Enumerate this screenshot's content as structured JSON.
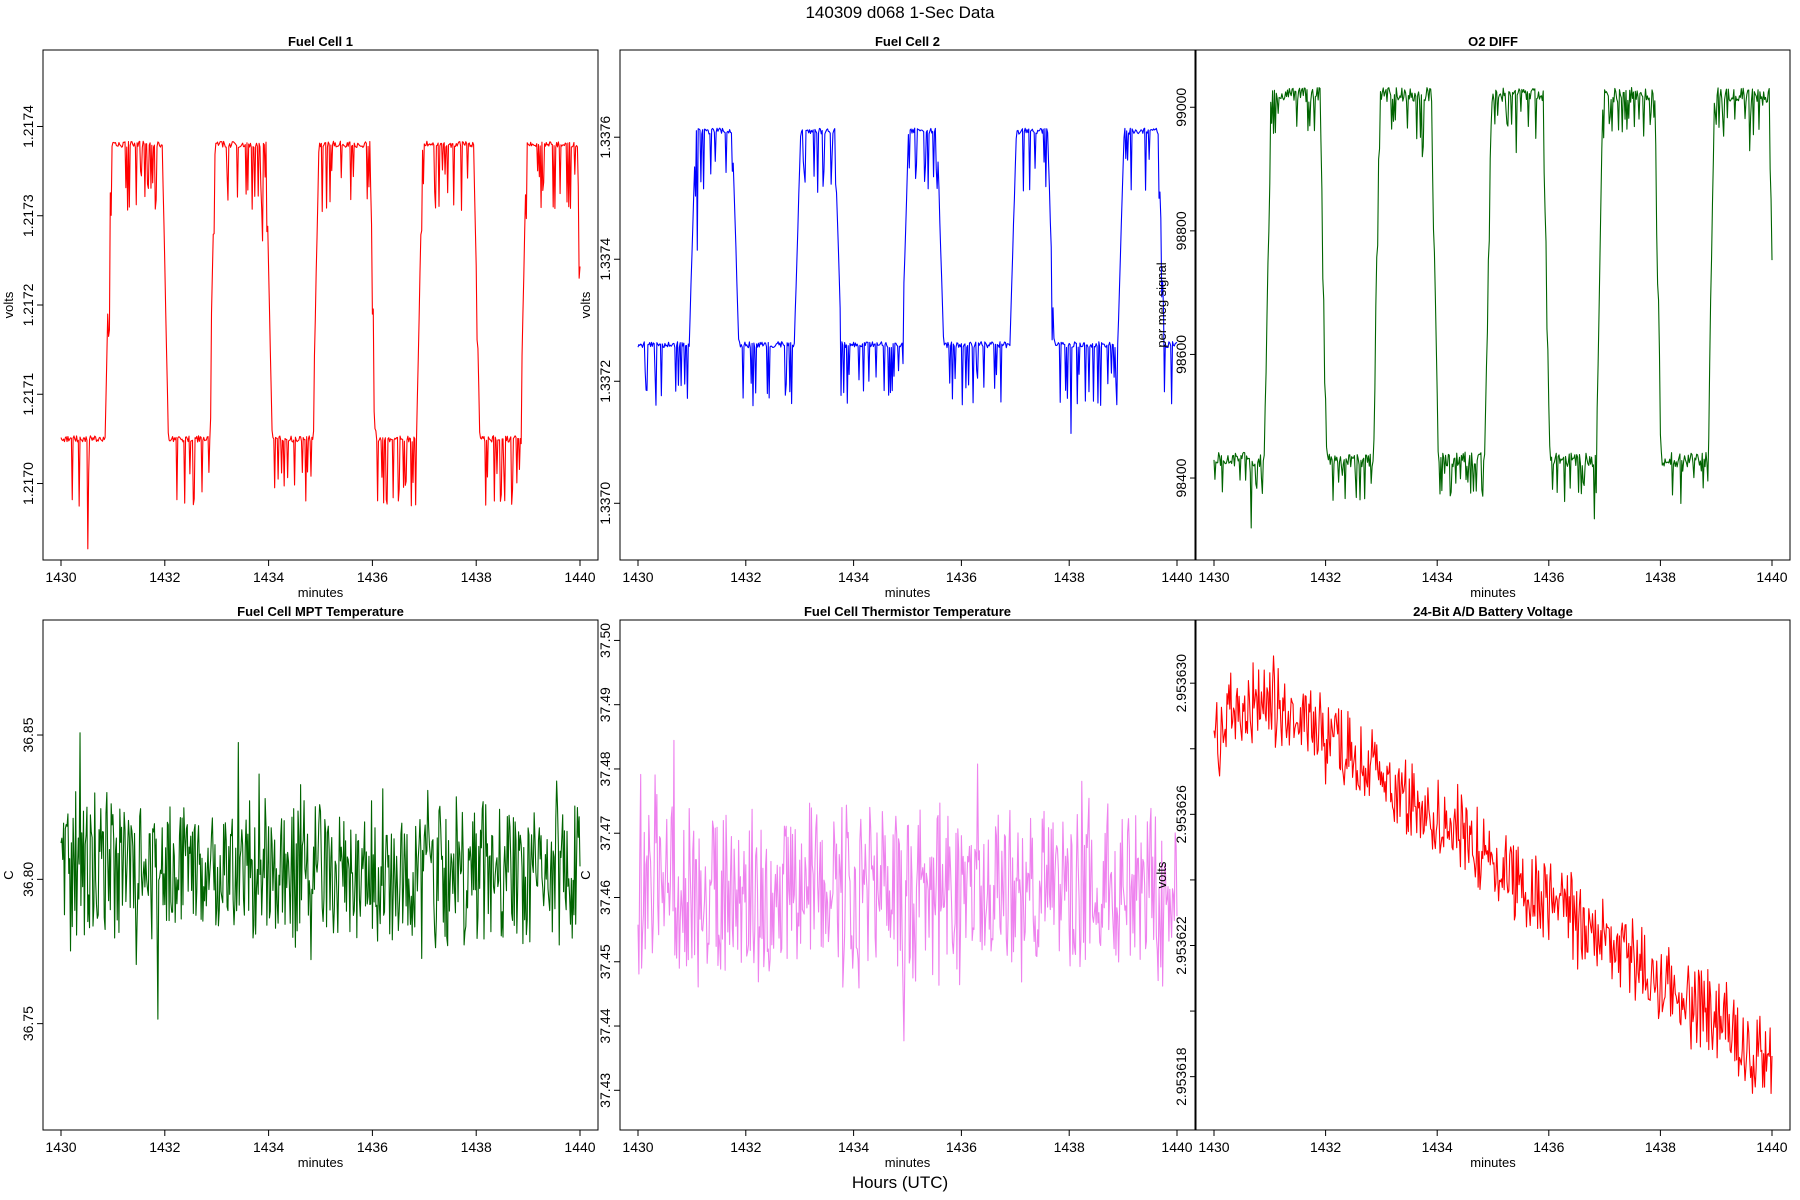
{
  "figure": {
    "title": "140309   d068   1-Sec Data",
    "xlabel": "Hours (UTC)"
  },
  "chart_data": [
    {
      "id": "fc1",
      "type": "line",
      "title": "Fuel Cell 1",
      "xlabel": "minutes",
      "ylabel": "volts",
      "color": "#ff0000",
      "xlim": [
        1430,
        1440
      ],
      "xticks": [
        1430,
        1432,
        1434,
        1436,
        1438,
        1440
      ],
      "ylim": [
        1.21693,
        1.21747
      ],
      "yticks": [
        1.217,
        1.2171,
        1.2172,
        1.2173,
        1.2174
      ],
      "ytick_labels": [
        "1.2170",
        "1.2171",
        "1.2172",
        "1.2173",
        "1.2174"
      ],
      "pattern": "square",
      "low": 1.21705,
      "high": 1.21738,
      "noise": 3.5e-06,
      "spike": -6e-05,
      "transitions": [
        1430.85,
        1431.95,
        1432.85,
        1433.95,
        1434.85,
        1435.95,
        1436.85,
        1437.95,
        1438.85,
        1439.95
      ],
      "x_end": 1440.0
    },
    {
      "id": "fc2",
      "type": "line",
      "title": "Fuel Cell 2",
      "xlabel": "minutes",
      "ylabel": "volts",
      "color": "#0000ff",
      "xlim": [
        1430,
        1440
      ],
      "xticks": [
        1430,
        1432,
        1434,
        1436,
        1438,
        1440
      ],
      "ylim": [
        1.33693,
        1.33772
      ],
      "yticks": [
        1.337,
        1.3372,
        1.3374,
        1.3376
      ],
      "ytick_labels": [
        "1.3370",
        "1.3372",
        "1.3374",
        "1.3376"
      ],
      "pattern": "square",
      "low": 1.33726,
      "high": 1.33761,
      "noise": 5e-06,
      "spike": -8e-05,
      "transitions": [
        1430.95,
        1431.75,
        1432.9,
        1433.65,
        1434.9,
        1435.55,
        1436.9,
        1437.6,
        1438.9,
        1439.65
      ],
      "x_end": 1440.0
    },
    {
      "id": "o2",
      "type": "line",
      "title": "O2 DIFF",
      "xlabel": "minutes",
      "ylabel": "per meg signal",
      "color": "#006400",
      "xlim": [
        1430,
        1440
      ],
      "xticks": [
        1430,
        1432,
        1434,
        1436,
        1438,
        1440
      ],
      "ylim": [
        98290,
        99070
      ],
      "yticks": [
        98400,
        98600,
        98800,
        99000
      ],
      "ytick_labels": [
        "98400",
        "98600",
        "98800",
        "99000"
      ],
      "pattern": "square",
      "low": 98430,
      "high": 99020,
      "noise": 12,
      "spike": -50,
      "transitions": [
        1430.9,
        1431.9,
        1432.85,
        1433.9,
        1434.85,
        1435.9,
        1436.85,
        1437.9,
        1438.85,
        1439.95
      ],
      "x_end": 1440.0
    },
    {
      "id": "mpt",
      "type": "line",
      "title": "Fuel Cell MPT Temperature",
      "xlabel": "minutes",
      "ylabel": "C",
      "color": "#006400",
      "xlim": [
        1430,
        1440
      ],
      "xticks": [
        1430,
        1432,
        1434,
        1436,
        1438,
        1440
      ],
      "ylim": [
        36.718,
        36.885
      ],
      "yticks": [
        36.75,
        36.8,
        36.85
      ],
      "ytick_labels": [
        "36.75",
        "36.80",
        "36.85"
      ],
      "pattern": "noise",
      "mean": 36.803,
      "spread": 0.022,
      "x_end": 1440.0
    },
    {
      "id": "therm",
      "type": "line",
      "title": "Fuel Cell Thermistor Temperature",
      "xlabel": "minutes",
      "ylabel": "C",
      "color": "#ee82ee",
      "xlim": [
        1430,
        1440
      ],
      "xticks": [
        1430,
        1432,
        1434,
        1436,
        1438,
        1440
      ],
      "ylim": [
        37.426,
        37.501
      ],
      "yticks": [
        37.43,
        37.44,
        37.45,
        37.46,
        37.47,
        37.48,
        37.49,
        37.5
      ],
      "ytick_labels": [
        "37.43",
        "37.44",
        "37.45",
        "37.46",
        "37.47",
        "37.48",
        "37.49",
        "37.50"
      ],
      "pattern": "noise",
      "mean": 37.461,
      "spread": 0.012,
      "x_end": 1440.0
    },
    {
      "id": "batt",
      "type": "line",
      "title": "24-Bit A/D Battery Voltage",
      "xlabel": "minutes",
      "ylabel": "volts",
      "color": "#ff0000",
      "xlim": [
        1430,
        1440
      ],
      "xticks": [
        1430,
        1432,
        1434,
        1436,
        1438,
        1440
      ],
      "ylim": [
        2.9536168,
        2.9536315
      ],
      "yticks": [
        2.953618,
        2.95362,
        2.953622,
        2.953624,
        2.953626,
        2.953628,
        2.95363
      ],
      "ytick_labels": [
        "2.953618",
        "",
        "2.953622",
        "",
        "2.953626",
        "",
        "2.953630"
      ],
      "pattern": "trend",
      "start": 2.9536285,
      "peak_x": 1431.0,
      "peak": 2.9536295,
      "end": 2.9536185,
      "spread": 1.1e-06,
      "x_end": 1440.0
    }
  ]
}
